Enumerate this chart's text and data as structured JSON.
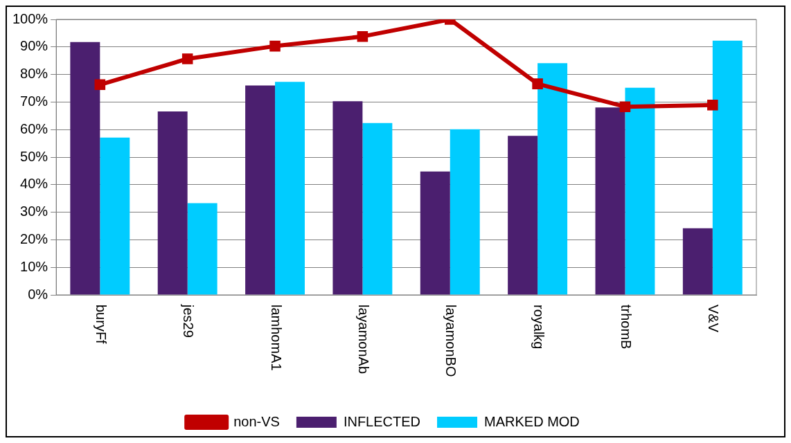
{
  "chart_data": {
    "type": "bar",
    "categories": [
      "buryFf",
      "jes29",
      "lamhomA1",
      "layamonAb",
      "layamonBO",
      "royalkg",
      "trhomB",
      "V&V"
    ],
    "series": [
      {
        "name": "INFLECTED",
        "color": "#4b1f6f",
        "values": [
          91.8,
          66.6,
          76.0,
          70.3,
          44.8,
          57.7,
          68.0,
          24.2
        ]
      },
      {
        "name": "MARKED MOD",
        "color": "#00ccff",
        "values": [
          57.1,
          33.3,
          77.3,
          62.4,
          60.1,
          84.1,
          75.2,
          92.3
        ]
      },
      {
        "name": "non-VS",
        "type": "line",
        "color": "#c00000",
        "marker": "square",
        "values": [
          76.3,
          85.7,
          90.3,
          93.8,
          100,
          76.6,
          68.3,
          68.9
        ]
      }
    ],
    "ylim": [
      0,
      100
    ],
    "yticks": [
      {
        "value": 0,
        "label": "0%"
      },
      {
        "value": 10,
        "label": "10%"
      },
      {
        "value": 20,
        "label": "20%"
      },
      {
        "value": 30,
        "label": "30%"
      },
      {
        "value": 40,
        "label": "40%"
      },
      {
        "value": 50,
        "label": "50%"
      },
      {
        "value": 60,
        "label": "60%"
      },
      {
        "value": 70,
        "label": "70%"
      },
      {
        "value": 80,
        "label": "80%"
      },
      {
        "value": 90,
        "label": "90%"
      },
      {
        "value": 100,
        "label": "100%"
      }
    ],
    "grid": "y",
    "legend": "bottom"
  }
}
